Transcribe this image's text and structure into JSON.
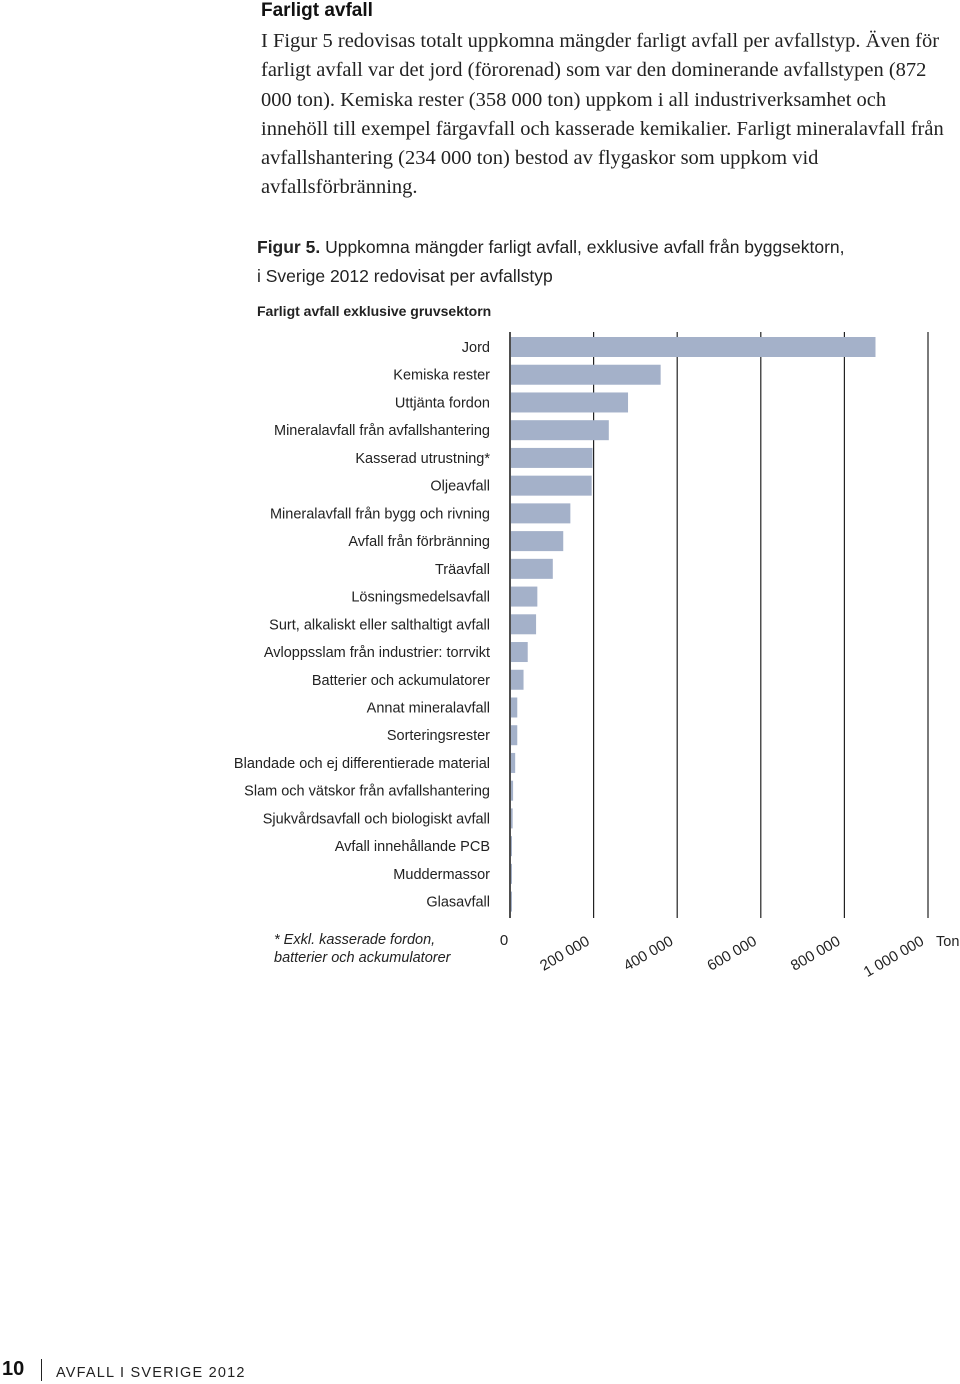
{
  "section": {
    "heading": "Farligt avfall",
    "paragraph": "I Figur 5 redovisas totalt uppkomna mängder farligt avfall per avfallstyp. Även för farligt avfall var det jord (förorenad) som var den dominerande avfallstypen (872 000 ton). Kemiska rester (358 000 ton) uppkom i all industriverksamhet och innehöll till exempel färgavfall och kasserade kemikalier. Farligt mineralavfall från avfallshantering (234 000 ton) bestod av flygaskor som uppkom vid avfallsförbränning."
  },
  "figure": {
    "label": "Figur 5.",
    "caption_line1": "Uppkomna mängder farligt avfall, exklusive avfall från byggsektorn,",
    "caption_line2": "i Sverige 2012 redovisat per avfallstyp",
    "subtitle": "Farligt avfall exklusive gruvsektorn",
    "footnote_line1": "* Exkl. kasserade fordon,",
    "footnote_line2": "batterier och ackumulatorer"
  },
  "chart_data": {
    "type": "bar",
    "orientation": "horizontal",
    "title": "Farligt avfall exklusive gruvsektorn",
    "xlabel": "Ton",
    "xlim": [
      0,
      1000000
    ],
    "xticks": [
      0,
      200000,
      400000,
      600000,
      800000,
      1000000
    ],
    "xtick_labels": [
      "0",
      "200 000",
      "400 000",
      "600 000",
      "800 000",
      "1 000 000"
    ],
    "grid": true,
    "bar_color": "#a4b1c9",
    "categories": [
      "Jord",
      "Kemiska rester",
      "Uttjänta fordon",
      "Mineralavfall från avfallshantering",
      "Kasserad utrustning*",
      "Oljeavfall",
      "Mineralavfall från bygg och rivning",
      "Avfall från förbränning",
      "Träavfall",
      "Lösningsmedelsavfall",
      "Surt, alkaliskt eller salthaltigt avfall",
      "Avloppsslam från industrier: torrvikt",
      "Batterier och ackumulatorer",
      "Annat mineralavfall",
      "Sorteringsrester",
      "Blandade och ej differentierade material",
      "Slam och vätskor från avfallshantering",
      "Sjukvårdsavfall och biologiskt avfall",
      "Avfall innehållande PCB",
      "Muddermassor",
      "Glasavfall"
    ],
    "values": [
      872000,
      358000,
      280000,
      234000,
      195000,
      193000,
      142000,
      125000,
      100000,
      63000,
      60000,
      40000,
      30000,
      15000,
      15000,
      10000,
      5000,
      4000,
      1500,
      500,
      300
    ]
  },
  "footer": {
    "page_number": "10",
    "publication": "AVFALL I SVERIGE 2012"
  }
}
